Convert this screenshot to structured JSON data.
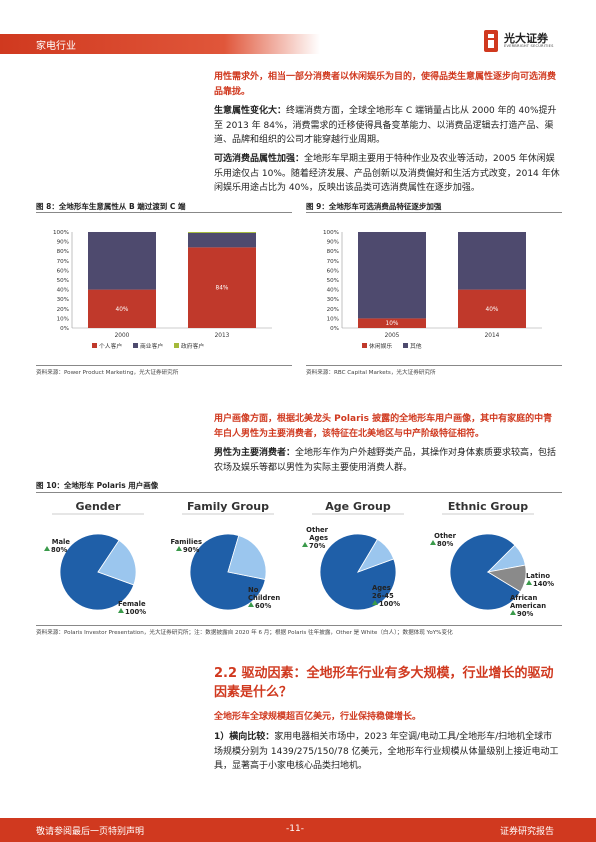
{
  "header": {
    "industry": "家电行业"
  },
  "logo": {
    "name": "光大证券",
    "en": "EVERBRIGHT SECURITIES"
  },
  "intro": {
    "text": "用性需求外，相当一部分消费者以休闲娱乐为目的，使得品类生意属性逐步向可选消费品靠拢。"
  },
  "p1": {
    "label": "生意属性变化大：",
    "text": "终端消费方面，全球全地形车 C 端销量占比从 2000 年的 40%提升至 2013 年 84%，消费需求的迁移使得具备变革能力、以消费品逻辑去打造产品、渠道、品牌和组织的公司才能穿越行业周期。"
  },
  "p2": {
    "label": "可选消费品属性加强：",
    "text": "全地形车早期主要用于特种作业及农业等活动，2005 年休闲娱乐用途仅占 10%。随着经济发展、产品创新以及消费偏好和生活方式改变，2014 年休闲娱乐用途占比为 40%，反映出该品类可选消费属性在逐步加强。"
  },
  "fig8": {
    "title": "图 8：全地形车生意属性从 B 端过渡到 C 端",
    "source": "资料来源：Power Product Marketing，光大证券研究所"
  },
  "fig9": {
    "title": "图 9：全地形车可选消费品特征逐步加强",
    "source": "资料来源：RBC Capital Markets，光大证券研究所"
  },
  "chart_data": [
    {
      "type": "bar",
      "stacked": true,
      "categories": [
        "2000",
        "2013"
      ],
      "series": [
        {
          "name": "个人客户",
          "values": [
            40,
            84
          ],
          "color": "#c0392b"
        },
        {
          "name": "商业客户",
          "values": [
            60,
            15
          ],
          "color": "#4e4a6e"
        },
        {
          "name": "政府客户",
          "values": [
            0,
            1
          ],
          "color": "#a4b93a"
        }
      ],
      "data_labels": [
        "40%",
        "84%"
      ],
      "yticks": [
        "0%",
        "10%",
        "20%",
        "30%",
        "40%",
        "50%",
        "60%",
        "70%",
        "80%",
        "90%",
        "100%"
      ],
      "ylim": [
        0,
        100
      ],
      "legend": "bottom"
    },
    {
      "type": "bar",
      "stacked": true,
      "categories": [
        "2005",
        "2014"
      ],
      "series": [
        {
          "name": "休闲娱乐",
          "values": [
            10,
            40
          ],
          "color": "#c0392b"
        },
        {
          "name": "其他",
          "values": [
            90,
            60
          ],
          "color": "#4e4a6e"
        }
      ],
      "data_labels": [
        "10%",
        "40%"
      ],
      "yticks": [
        "0%",
        "10%",
        "20%",
        "30%",
        "40%",
        "50%",
        "60%",
        "70%",
        "80%",
        "90%",
        "100%"
      ],
      "ylim": [
        0,
        100
      ],
      "legend": "bottom"
    }
  ],
  "p3": {
    "text": "用户画像方面，根据北美龙头 Polaris 披露的全地形车用户画像，其中有家庭的中青年白人男性为主要消费者，该特征在北美地区与中产阶级特征相符。"
  },
  "p4": {
    "label": "男性为主要消费者：",
    "text": "全地形车作为户外越野类产品，其操作对身体素质要求较高，包括农场及娱乐等都以男性为实际主要使用消费人群。"
  },
  "fig10": {
    "title": "图 10：全地形车 Polaris 用户画像",
    "source": "资料来源：Polaris Investor Presentation，光大证券研究所；注：数据披露自 2020 年 6 月；根据 Polaris 往年披露，Other 是 White（白人）；数据体现 YoY%变化",
    "pies": [
      {
        "heading": "Gender",
        "labels": [
          {
            "name": "Male",
            "value": "80%"
          },
          {
            "name": "Female",
            "value": "100%"
          }
        ]
      },
      {
        "heading": "Family Group",
        "labels": [
          {
            "name": "Families",
            "value": "90%"
          },
          {
            "name": "No Children",
            "value": "60%"
          }
        ]
      },
      {
        "heading": "Age Group",
        "labels": [
          {
            "name": "Other Ages",
            "value": "70%"
          },
          {
            "name": "Ages 26-45",
            "value": "100%"
          }
        ]
      },
      {
        "heading": "Ethnic Group",
        "labels": [
          {
            "name": "Other",
            "value": "80%"
          },
          {
            "name": "Latino",
            "value": "140%"
          },
          {
            "name": "African American",
            "value": "90%"
          }
        ]
      }
    ]
  },
  "section": {
    "title": "2.2  驱动因素：全地形车行业有多大规模，行业增长的驱动因素是什么？"
  },
  "p5": {
    "text": "全地形车全球规模超百亿美元，行业保持稳健增长。"
  },
  "p6": {
    "label": "1）横向比较：",
    "text": "家用电器相关市场中，2023 年空调/电动工具/全地形车/扫地机全球市场规模分别为 1439/275/150/78 亿美元，全地形车行业规模从体量级别上接近电动工具，显著高于小家电核心品类扫地机。"
  },
  "footer": {
    "left": "敬请参阅最后一页特别声明",
    "page": "-11-",
    "right": "证券研究报告"
  },
  "colors": {
    "accent": "#d0391f",
    "bar_red": "#c0392b",
    "bar_navy": "#4e4a6e",
    "pie_blue": "#1f5fa8",
    "pie_light": "#9bc6ee",
    "pie_grey": "#8a8a8a",
    "up_arrow": "#3a9a4a"
  }
}
